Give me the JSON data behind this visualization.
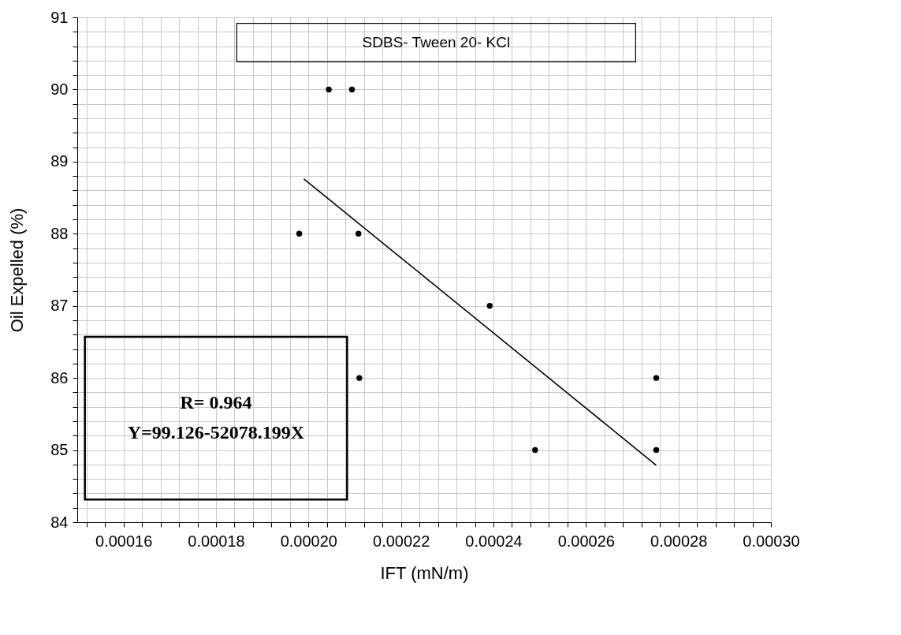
{
  "chart_data": {
    "type": "scatter",
    "xlabel": "IFT (mN/m)",
    "ylabel": "Oil Expelled (%)",
    "annotations": [
      "SDBS- Tween 20- KCl",
      "R= 0.964",
      "Y=99.126-52078.199X"
    ],
    "series": [
      {
        "color": "#000000",
        "marker": "circle",
        "x": [
          0.000198,
          0.0002044,
          0.0002094,
          0.0002108,
          0.0002392,
          0.000211,
          0.000249,
          0.0002752,
          0.0002752
        ],
        "values": [
          88,
          90,
          90,
          88,
          87,
          86,
          85,
          86,
          85
        ]
      },
      {
        "type": "line",
        "color": "#000000",
        "line_style": "solid",
        "x": [
          0.000199,
          0.0002752
        ],
        "values": [
          88.76,
          84.79
        ]
      }
    ],
    "xlim": [
      0.00015,
      0.0003
    ],
    "ylim": [
      84,
      91
    ],
    "xticks": [
      {
        "value": 0.000152,
        "label": null
      },
      {
        "value": 0.000156,
        "label": null
      },
      {
        "value": 0.00016,
        "label": "0.00016"
      },
      {
        "value": 0.000164,
        "label": null
      },
      {
        "value": 0.000168,
        "label": null
      },
      {
        "value": 0.000172,
        "label": null
      },
      {
        "value": 0.000176,
        "label": null
      },
      {
        "value": 0.00018,
        "label": "0.00018"
      },
      {
        "value": 0.000184,
        "label": null
      },
      {
        "value": 0.000188,
        "label": null
      },
      {
        "value": 0.000192,
        "label": null
      },
      {
        "value": 0.000196,
        "label": null
      },
      {
        "value": 0.0002,
        "label": "0.00020"
      },
      {
        "value": 0.000204,
        "label": null
      },
      {
        "value": 0.000208,
        "label": null
      },
      {
        "value": 0.000212,
        "label": null
      },
      {
        "value": 0.000216,
        "label": null
      },
      {
        "value": 0.00022,
        "label": "0.00022"
      },
      {
        "value": 0.000224,
        "label": null
      },
      {
        "value": 0.000228,
        "label": null
      },
      {
        "value": 0.000232,
        "label": null
      },
      {
        "value": 0.000236,
        "label": null
      },
      {
        "value": 0.00024,
        "label": "0.00024"
      },
      {
        "value": 0.000244,
        "label": null
      },
      {
        "value": 0.000248,
        "label": null
      },
      {
        "value": 0.000252,
        "label": null
      },
      {
        "value": 0.000256,
        "label": null
      },
      {
        "value": 0.00026,
        "label": "0.00026"
      },
      {
        "value": 0.000264,
        "label": null
      },
      {
        "value": 0.000268,
        "label": null
      },
      {
        "value": 0.000272,
        "label": null
      },
      {
        "value": 0.000276,
        "label": null
      },
      {
        "value": 0.00028,
        "label": "0.00028"
      },
      {
        "value": 0.000284,
        "label": null
      },
      {
        "value": 0.000288,
        "label": null
      },
      {
        "value": 0.000292,
        "label": null
      },
      {
        "value": 0.000296,
        "label": null
      },
      {
        "value": 0.0003,
        "label": "0.00030"
      }
    ],
    "yticks": [
      84,
      {
        "value": 84.2,
        "label": null
      },
      {
        "value": 84.4,
        "label": null
      },
      {
        "value": 84.6,
        "label": null
      },
      {
        "value": 84.8,
        "label": null
      },
      85,
      {
        "value": 85.2,
        "label": null
      },
      {
        "value": 85.4,
        "label": null
      },
      {
        "value": 85.6,
        "label": null
      },
      {
        "value": 85.8,
        "label": null
      },
      86,
      {
        "value": 86.2,
        "label": null
      },
      {
        "value": 86.4,
        "label": null
      },
      {
        "value": 86.6,
        "label": null
      },
      {
        "value": 86.8,
        "label": null
      },
      87,
      {
        "value": 87.2,
        "label": null
      },
      {
        "value": 87.4,
        "label": null
      },
      {
        "value": 87.6,
        "label": null
      },
      {
        "value": 87.8,
        "label": null
      },
      88,
      {
        "value": 88.2,
        "label": null
      },
      {
        "value": 88.4,
        "label": null
      },
      {
        "value": 88.6,
        "label": null
      },
      {
        "value": 88.8,
        "label": null
      },
      89,
      {
        "value": 89.2,
        "label": null
      },
      {
        "value": 89.4,
        "label": null
      },
      {
        "value": 89.6,
        "label": null
      },
      {
        "value": 89.8,
        "label": null
      },
      90,
      {
        "value": 90.2,
        "label": null
      },
      {
        "value": 90.4,
        "label": null
      },
      {
        "value": 90.6,
        "label": null
      },
      {
        "value": 90.8,
        "label": null
      },
      91
    ],
    "grid": true
  }
}
